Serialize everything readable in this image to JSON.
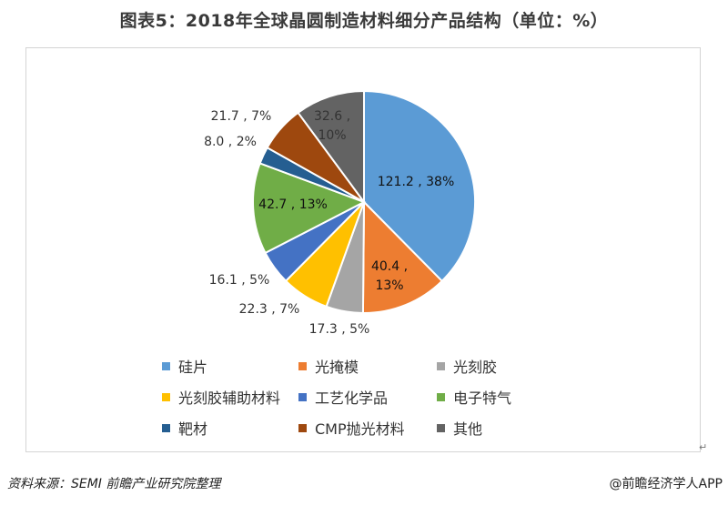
{
  "title": "图表5：2018年全球晶圆制造材料细分产品结构（单位：%）",
  "source": "资料来源：SEMI 前瞻产业研究院整理",
  "brand": "@前瞻经济学人APP",
  "return_mark": "↵",
  "chart_data": {
    "type": "pie",
    "title": "图表5：2018年全球晶圆制造材料细分产品结构（单位：%）",
    "legend_position": "bottom",
    "slices": [
      {
        "name": "硅片",
        "value": 121.2,
        "percent": "38%",
        "color": "#5b9bd5",
        "label": "121.2 , 38%",
        "label2": ""
      },
      {
        "name": "光掩模",
        "value": 40.4,
        "percent": "13%",
        "color": "#ed7d31",
        "label": "40.4 ,",
        "label2": "13%"
      },
      {
        "name": "光刻胶",
        "value": 17.3,
        "percent": "5%",
        "color": "#a5a5a5",
        "label": "17.3 , 5%",
        "label2": ""
      },
      {
        "name": "光刻胶辅助材料",
        "value": 22.3,
        "percent": "7%",
        "color": "#ffc000",
        "label": "22.3 , 7%",
        "label2": ""
      },
      {
        "name": "工艺化学品",
        "value": 16.1,
        "percent": "5%",
        "color": "#4472c4",
        "label": "16.1 , 5%",
        "label2": ""
      },
      {
        "name": "电子特气",
        "value": 42.7,
        "percent": "13%",
        "color": "#70ad47",
        "label": "42.7 , 13%",
        "label2": ""
      },
      {
        "name": "靶材",
        "value": 8.0,
        "percent": "2%",
        "color": "#255e91",
        "label": "8.0 , 2%",
        "label2": ""
      },
      {
        "name": "CMP抛光材料",
        "value": 21.7,
        "percent": "7%",
        "color": "#9e480e",
        "label": "21.7 , 7%",
        "label2": ""
      },
      {
        "name": "其他",
        "value": 32.6,
        "percent": "10%",
        "color": "#636363",
        "label": "32.6 ,",
        "label2": "10%"
      }
    ]
  }
}
